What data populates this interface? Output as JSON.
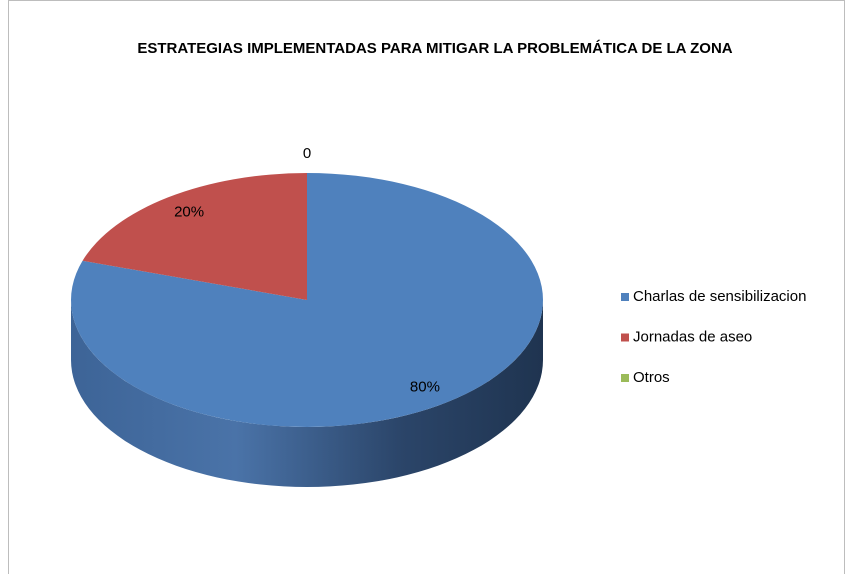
{
  "chart_data": {
    "type": "pie",
    "title": "ESTRATEGIAS IMPLEMENTADAS PARA MITIGAR LA PROBLEMÁTICA DE LA ZONA",
    "categories": [
      "Charlas de sensibilizacion",
      "Jornadas de aseo",
      "Otros"
    ],
    "values": [
      80,
      20,
      0
    ],
    "value_labels": [
      "80%",
      "20%",
      "0"
    ],
    "colors": [
      "#4f81bd",
      "#c0504d",
      "#9bbb59"
    ],
    "legend": "right"
  }
}
